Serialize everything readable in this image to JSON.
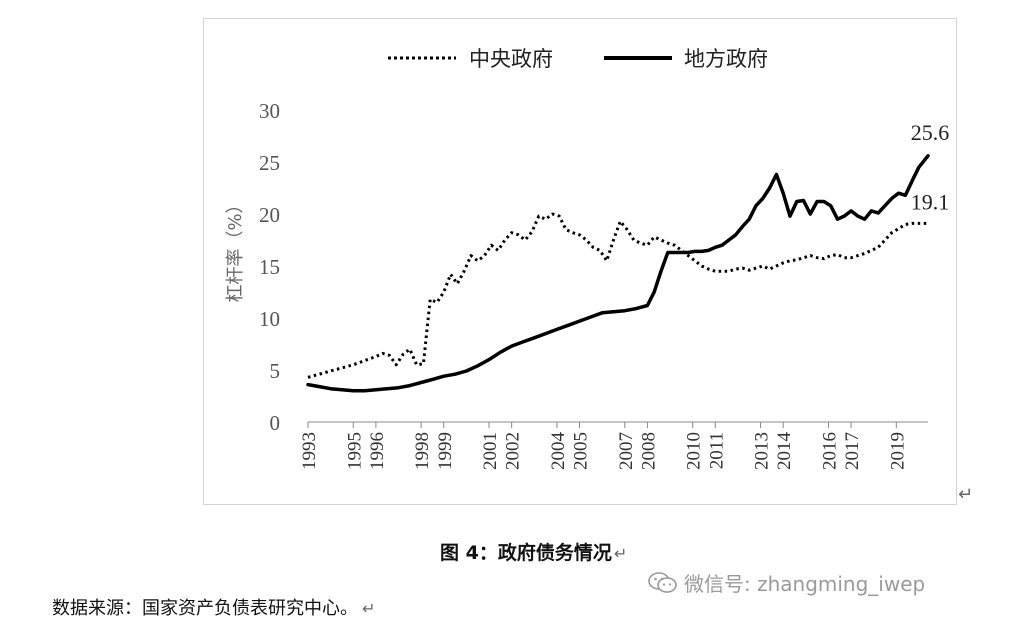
{
  "chart_data": {
    "type": "line",
    "ylabel": "杠杆率（%）",
    "ylim": [
      0,
      30
    ],
    "yticks": [
      "0",
      "5",
      "10",
      "15",
      "20",
      "25",
      "30"
    ],
    "xlim": [
      1993,
      2020.4
    ],
    "xticks": [
      "1993",
      "1995",
      "1996",
      "1998",
      "1999",
      "2001",
      "2002",
      "2004",
      "2005",
      "2007",
      "2008",
      "2010",
      "2011",
      "2013",
      "2014",
      "2016",
      "2017",
      "2019"
    ],
    "legend_position": "top-center",
    "series": [
      {
        "name": "中央政府",
        "style": "dotted",
        "color": "#000000",
        "x": [
          1993,
          1993.5,
          1994,
          1994.5,
          1995,
          1995.5,
          1996,
          1996.3,
          1996.6,
          1996.9,
          1997.2,
          1997.5,
          1997.8,
          1998.1,
          1998.4,
          1998.7,
          1999,
          1999.3,
          1999.6,
          1999.9,
          2000.2,
          2000.5,
          2000.8,
          2001.1,
          2001.4,
          2001.7,
          2002,
          2002.3,
          2002.6,
          2002.9,
          2003.2,
          2003.5,
          2003.8,
          2004.1,
          2004.4,
          2004.7,
          2005,
          2005.3,
          2005.6,
          2005.9,
          2006.2,
          2006.5,
          2006.8,
          2007.1,
          2007.4,
          2007.7,
          2008,
          2008.3,
          2008.6,
          2008.9,
          2009.2,
          2009.5,
          2009.8,
          2010.1,
          2010.4,
          2010.7,
          2011,
          2011.3,
          2011.6,
          2011.9,
          2012.2,
          2012.5,
          2012.8,
          2013.1,
          2013.4,
          2013.7,
          2014,
          2014.3,
          2014.6,
          2014.9,
          2015.2,
          2015.5,
          2015.8,
          2016.1,
          2016.4,
          2016.7,
          2017,
          2017.3,
          2017.6,
          2017.9,
          2018.2,
          2018.5,
          2018.8,
          2019.1,
          2019.4,
          2019.7,
          2020,
          2020.4
        ],
        "values": [
          4.3,
          4.6,
          4.9,
          5.2,
          5.5,
          5.9,
          6.3,
          6.6,
          6.4,
          5.5,
          6.5,
          7.0,
          5.5,
          5.6,
          11.8,
          11.5,
          12.5,
          14.2,
          13.3,
          14.5,
          16.0,
          15.5,
          16.0,
          17.0,
          16.5,
          17.5,
          18.2,
          18.0,
          17.5,
          18.3,
          19.8,
          19.5,
          20.0,
          19.8,
          18.5,
          18.2,
          18.0,
          17.5,
          16.8,
          16.5,
          15.5,
          17.5,
          19.3,
          18.5,
          17.5,
          17.2,
          17.0,
          17.8,
          17.5,
          17.2,
          17.0,
          16.5,
          16.0,
          15.5,
          15.0,
          14.7,
          14.5,
          14.5,
          14.5,
          14.7,
          14.8,
          14.6,
          14.8,
          15.0,
          14.7,
          15.0,
          15.3,
          15.5,
          15.6,
          15.8,
          16.0,
          15.8,
          15.7,
          16.0,
          16.1,
          15.8,
          15.8,
          16.0,
          16.2,
          16.5,
          16.8,
          17.5,
          18.2,
          18.6,
          19.0,
          19.1,
          19.1,
          19.1
        ],
        "end_label": "19.1"
      },
      {
        "name": "地方政府",
        "style": "solid",
        "color": "#000000",
        "x": [
          1993,
          1993.5,
          1994,
          1994.5,
          1995,
          1995.5,
          1996,
          1996.5,
          1997,
          1997.5,
          1998,
          1998.5,
          1999,
          1999.5,
          2000,
          2000.5,
          2001,
          2001.5,
          2002,
          2002.5,
          2003,
          2003.5,
          2004,
          2004.5,
          2005,
          2005.5,
          2006,
          2006.5,
          2007,
          2007.5,
          2008,
          2008.3,
          2008.6,
          2008.9,
          2009.2,
          2009.5,
          2009.8,
          2010.1,
          2010.4,
          2010.7,
          2011,
          2011.3,
          2011.6,
          2011.9,
          2012.2,
          2012.5,
          2012.8,
          2013.1,
          2013.4,
          2013.7,
          2014,
          2014.3,
          2014.6,
          2014.9,
          2015.2,
          2015.5,
          2015.8,
          2016.1,
          2016.4,
          2016.7,
          2017,
          2017.3,
          2017.6,
          2017.9,
          2018.2,
          2018.5,
          2018.8,
          2019.1,
          2019.4,
          2019.7,
          2020,
          2020.4
        ],
        "values": [
          3.6,
          3.4,
          3.2,
          3.1,
          3.0,
          3.0,
          3.1,
          3.2,
          3.3,
          3.5,
          3.8,
          4.1,
          4.4,
          4.6,
          4.9,
          5.4,
          6.0,
          6.7,
          7.3,
          7.7,
          8.1,
          8.5,
          8.9,
          9.3,
          9.7,
          10.1,
          10.5,
          10.6,
          10.7,
          10.9,
          11.2,
          12.5,
          14.5,
          16.3,
          16.3,
          16.3,
          16.3,
          16.4,
          16.4,
          16.5,
          16.8,
          17.0,
          17.5,
          18.0,
          18.8,
          19.5,
          20.8,
          21.5,
          22.5,
          23.8,
          22.0,
          19.8,
          21.2,
          21.3,
          20.0,
          21.2,
          21.2,
          20.8,
          19.5,
          19.8,
          20.3,
          19.8,
          19.5,
          20.3,
          20.1,
          20.8,
          21.5,
          22.0,
          21.8,
          23.2,
          24.5,
          25.6
        ],
        "end_label": "25.6"
      }
    ]
  },
  "figure_caption": "图 4：政府债务情况",
  "return_mark": "↵",
  "source_note": "数据来源：国家资产负债表研究中心。",
  "watermark": "微信号: zhangming_iwep"
}
